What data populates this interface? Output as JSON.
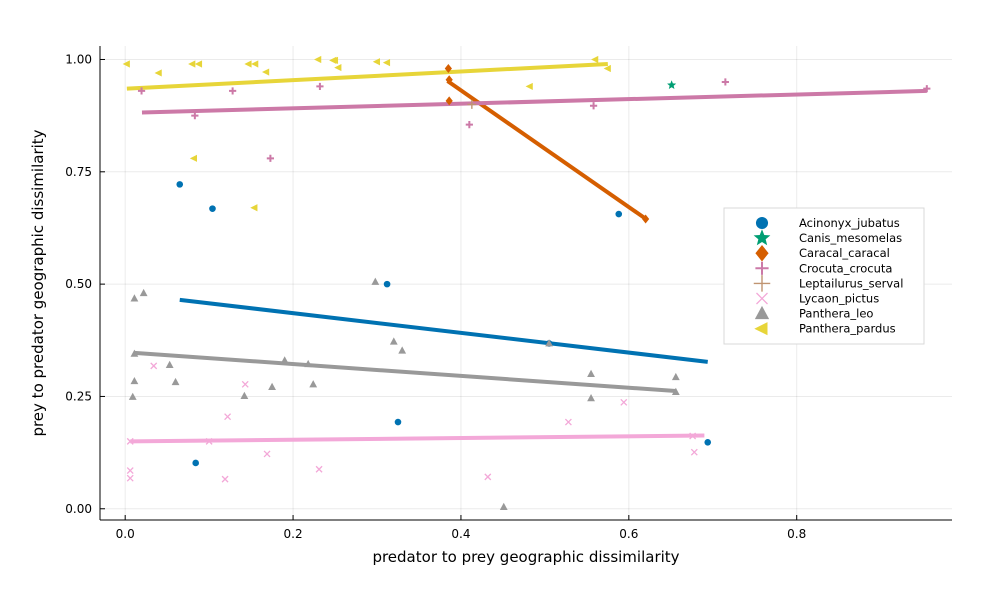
{
  "chart_data": {
    "type": "scatter",
    "title": "",
    "xlabel": "predator to prey geographic dissimilarity",
    "ylabel": "prey to predator geographic dissimilarity",
    "xlim": [
      -0.03,
      0.985
    ],
    "ylim": [
      -0.025,
      1.03
    ],
    "xticks": [
      0.0,
      0.2,
      0.4,
      0.6,
      0.8
    ],
    "xtick_labels": [
      "0.0",
      "0.2",
      "0.4",
      "0.6",
      "0.8"
    ],
    "yticks": [
      0.0,
      0.25,
      0.5,
      0.75,
      1.0
    ],
    "ytick_labels": [
      "0.00",
      "0.25",
      "0.50",
      "0.75",
      "1.00"
    ],
    "grid": true,
    "legend_position": "right",
    "series": [
      {
        "name": "Acinonyx_jubatus",
        "color": "#0072b2",
        "marker": "circle",
        "points": [
          [
            0.065,
            0.722
          ],
          [
            0.104,
            0.668
          ],
          [
            0.312,
            0.5
          ],
          [
            0.325,
            0.193
          ],
          [
            0.084,
            0.102
          ],
          [
            0.505,
            0.368
          ],
          [
            0.588,
            0.656
          ],
          [
            0.694,
            0.148
          ]
        ],
        "fit": [
          [
            0.065,
            0.465
          ],
          [
            0.694,
            0.327
          ]
        ]
      },
      {
        "name": "Canis_mesomelas",
        "color": "#009e73",
        "marker": "star",
        "points": [
          [
            0.651,
            0.943
          ]
        ],
        "fit": null
      },
      {
        "name": "Caracal_caracal",
        "color": "#d55e00",
        "marker": "diamond",
        "points": [
          [
            0.385,
            0.98
          ],
          [
            0.386,
            0.908
          ],
          [
            0.386,
            0.955
          ],
          [
            0.62,
            0.645
          ]
        ],
        "fit": [
          [
            0.384,
            0.952
          ],
          [
            0.622,
            0.643
          ]
        ]
      },
      {
        "name": "Crocuta_crocuta",
        "color": "#cc79a7",
        "marker": "plus",
        "points": [
          [
            0.0195,
            0.93
          ],
          [
            0.083,
            0.875
          ],
          [
            0.128,
            0.93
          ],
          [
            0.173,
            0.78
          ],
          [
            0.232,
            0.94
          ],
          [
            0.41,
            0.855
          ],
          [
            0.558,
            0.897
          ],
          [
            0.715,
            0.95
          ],
          [
            0.955,
            0.935
          ]
        ],
        "fit": [
          [
            0.02,
            0.882
          ],
          [
            0.955,
            0.93
          ]
        ]
      },
      {
        "name": "Leptailurus_serval",
        "color": "#c09471",
        "marker": "cross",
        "points": [
          [
            0.413,
            0.9
          ]
        ],
        "fit": null
      },
      {
        "name": "Lycaon_pictus",
        "color": "#f3a8d8",
        "marker": "x",
        "points": [
          [
            0.006,
            0.085
          ],
          [
            0.006,
            0.068
          ],
          [
            0.006,
            0.15
          ],
          [
            0.034,
            0.318
          ],
          [
            0.1,
            0.15
          ],
          [
            0.119,
            0.066
          ],
          [
            0.122,
            0.205
          ],
          [
            0.143,
            0.277
          ],
          [
            0.169,
            0.122
          ],
          [
            0.231,
            0.088
          ],
          [
            0.432,
            0.071
          ],
          [
            0.528,
            0.193
          ],
          [
            0.594,
            0.237
          ],
          [
            0.676,
            0.162
          ],
          [
            0.678,
            0.126
          ]
        ],
        "fit": [
          [
            0.006,
            0.15
          ],
          [
            0.69,
            0.163
          ]
        ]
      },
      {
        "name": "Panthera_leo",
        "color": "#999999",
        "marker": "triangle",
        "points": [
          [
            0.011,
            0.468
          ],
          [
            0.022,
            0.48
          ],
          [
            0.011,
            0.345
          ],
          [
            0.011,
            0.284
          ],
          [
            0.009,
            0.249
          ],
          [
            0.053,
            0.32
          ],
          [
            0.06,
            0.282
          ],
          [
            0.142,
            0.251
          ],
          [
            0.175,
            0.271
          ],
          [
            0.19,
            0.33
          ],
          [
            0.218,
            0.322
          ],
          [
            0.224,
            0.277
          ],
          [
            0.298,
            0.505
          ],
          [
            0.32,
            0.372
          ],
          [
            0.33,
            0.352
          ],
          [
            0.451,
            0.004
          ],
          [
            0.505,
            0.368
          ],
          [
            0.555,
            0.3
          ],
          [
            0.555,
            0.246
          ],
          [
            0.656,
            0.293
          ],
          [
            0.656,
            0.26
          ]
        ],
        "fit": [
          [
            0.011,
            0.347
          ],
          [
            0.656,
            0.262
          ]
        ]
      },
      {
        "name": "Panthera_pardus",
        "color": "#e7d539",
        "marker": "triangle-left",
        "points": [
          [
            0.002,
            0.99
          ],
          [
            0.04,
            0.97
          ],
          [
            0.08,
            0.99
          ],
          [
            0.088,
            0.99
          ],
          [
            0.082,
            0.78
          ],
          [
            0.147,
            0.99
          ],
          [
            0.155,
            0.99
          ],
          [
            0.154,
            0.67
          ],
          [
            0.168,
            0.972
          ],
          [
            0.23,
            1.0
          ],
          [
            0.248,
            0.998
          ],
          [
            0.25,
            0.998
          ],
          [
            0.254,
            0.982
          ],
          [
            0.3,
            0.995
          ],
          [
            0.312,
            0.993
          ],
          [
            0.482,
            0.94
          ],
          [
            0.56,
            1.0
          ],
          [
            0.575,
            0.98
          ]
        ],
        "fit": [
          [
            0.002,
            0.935
          ],
          [
            0.575,
            0.99
          ]
        ]
      }
    ]
  }
}
